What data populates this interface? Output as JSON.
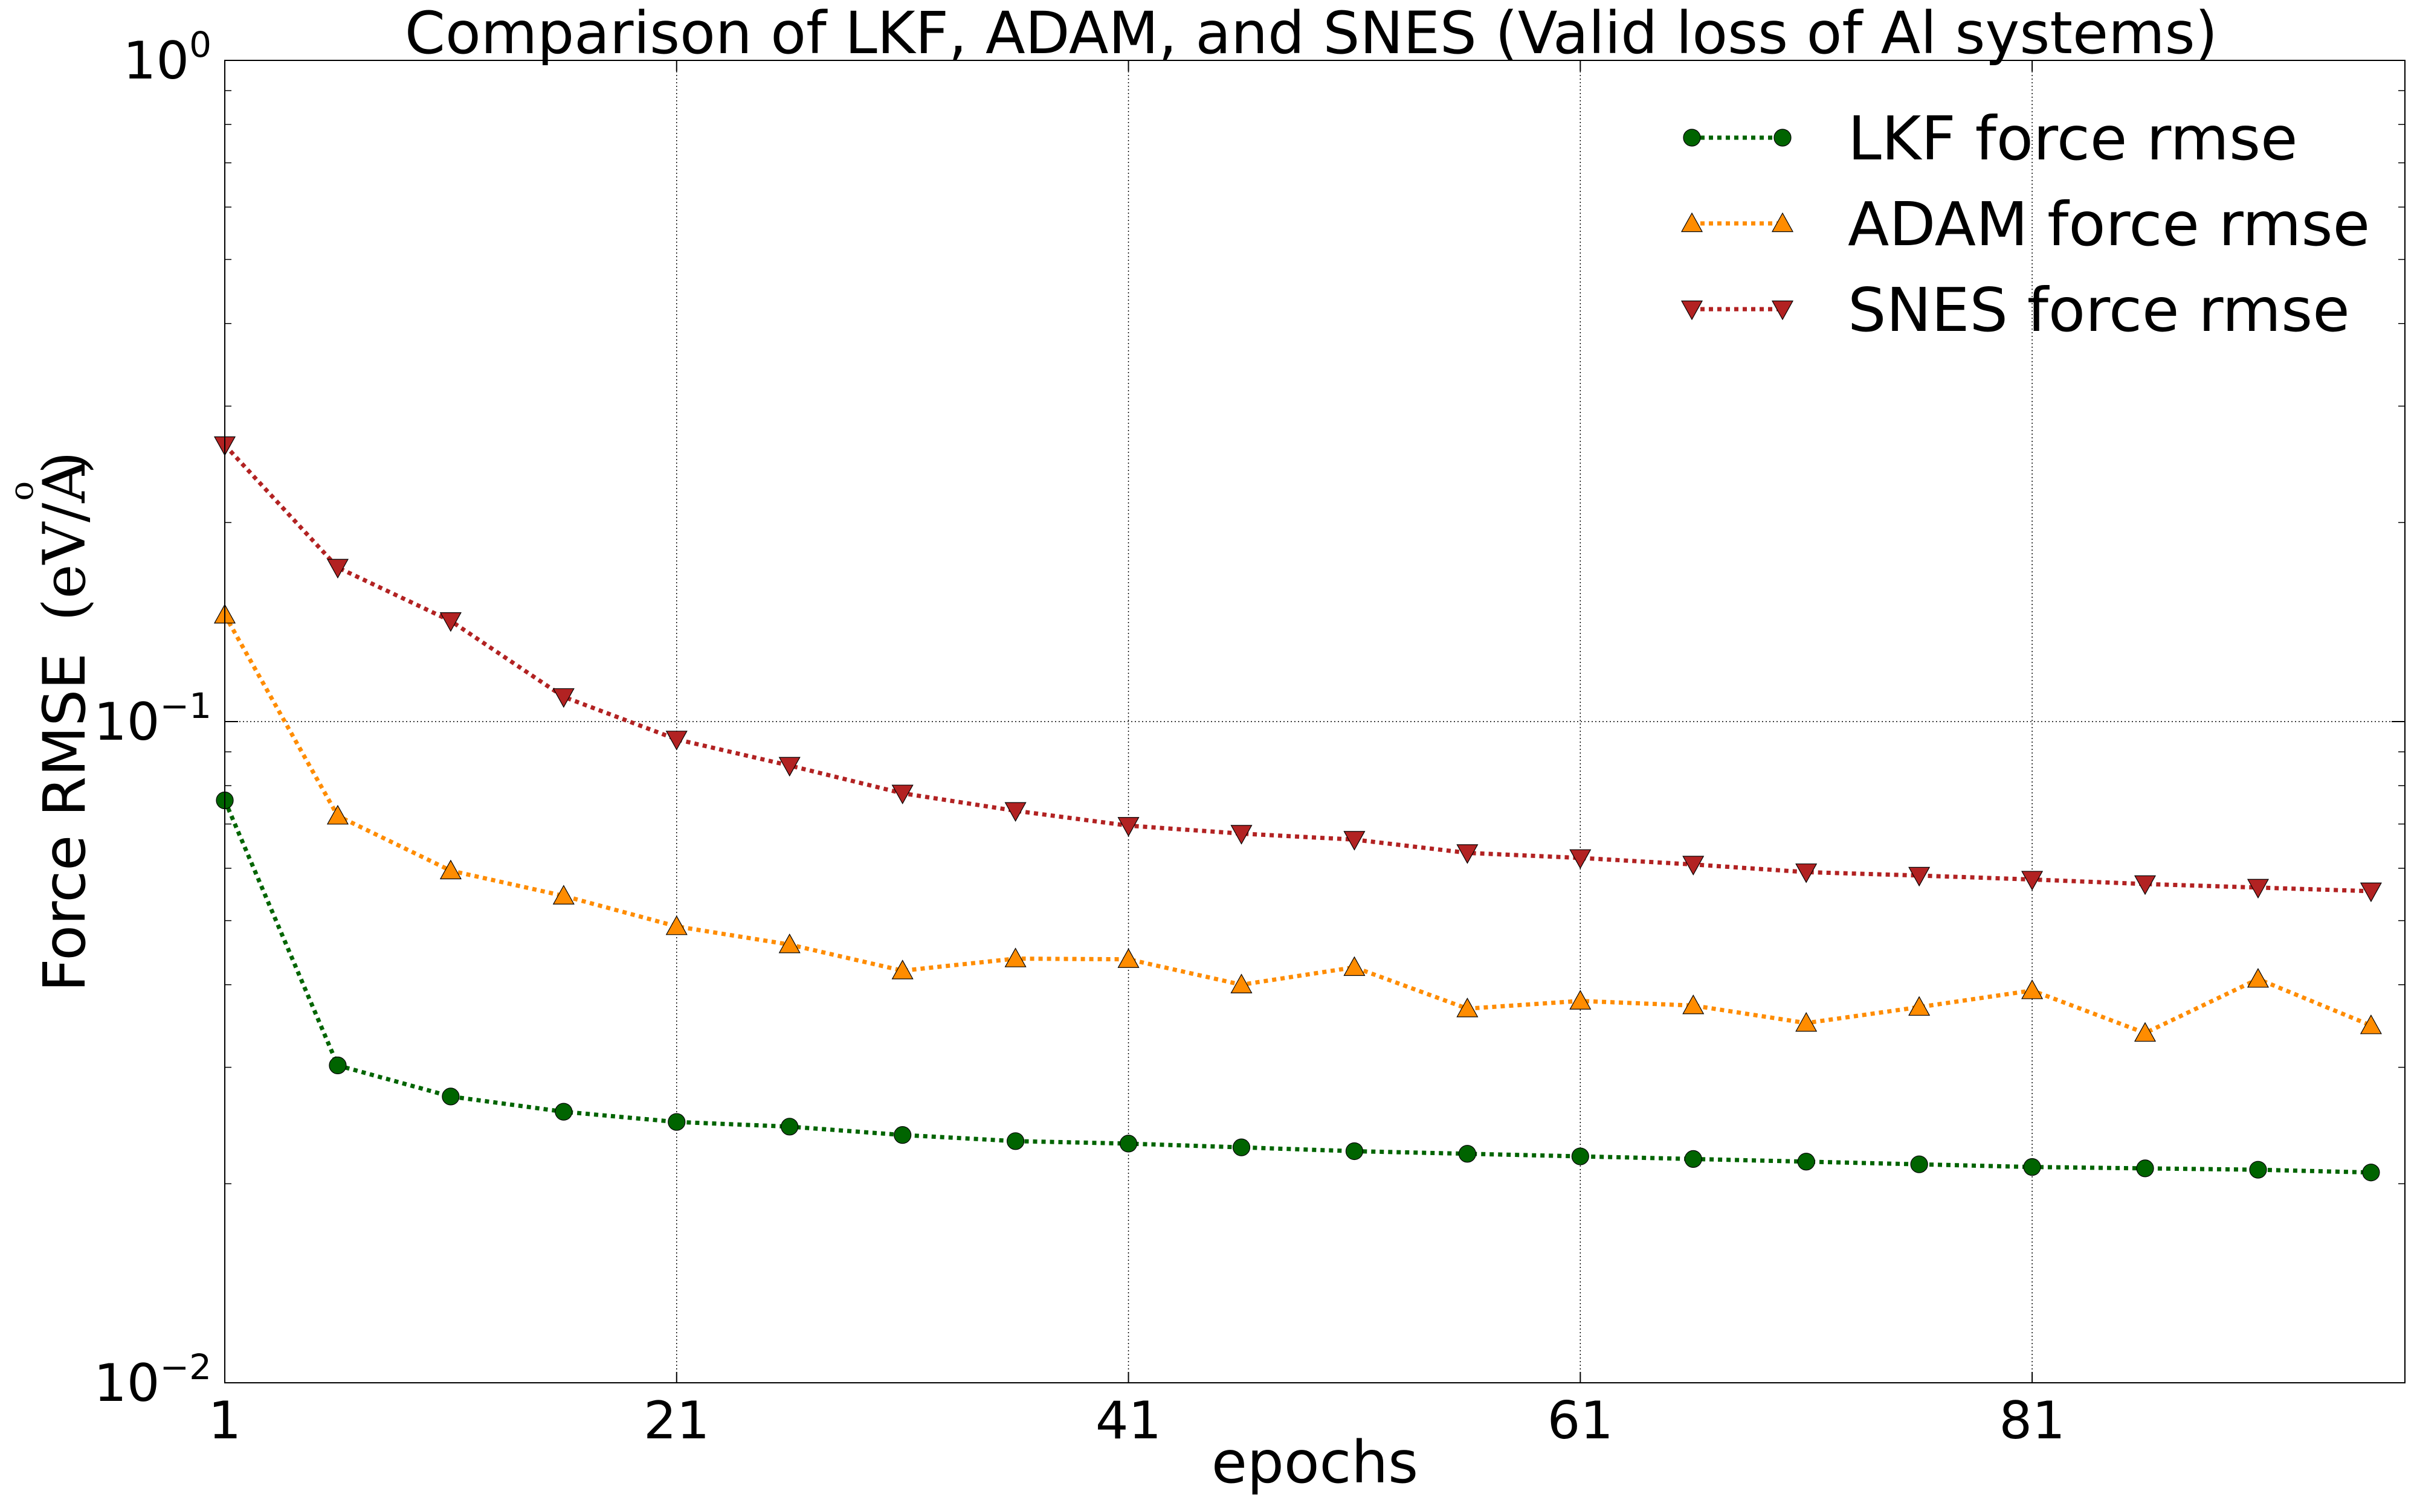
{
  "chart_data": {
    "type": "line",
    "title": "Comparison of LKF, ADAM, and SNES (Valid loss of Al systems)",
    "xlabel": "epochs",
    "ylabel": "Force RMSE (eV/Å)",
    "ylabel_text": "Force RMSE",
    "ylabel_unit_open": "(eV/A",
    "ylabel_ring": "o",
    "ylabel_unit_close": ")",
    "y_scale": "log",
    "xlim": [
      1,
      97.5
    ],
    "ylim": [
      0.01,
      1
    ],
    "x_ticks": [
      1,
      21,
      41,
      61,
      81
    ],
    "x_tick_labels": [
      "1",
      "21",
      "41",
      "61",
      "81"
    ],
    "y_ticks": [
      0.01,
      0.1,
      1
    ],
    "y_tick_labels": [
      {
        "base": "10",
        "exp": "−2"
      },
      {
        "base": "10",
        "exp": "−1"
      },
      {
        "base": "10",
        "exp": "0"
      }
    ],
    "grid": true,
    "legend_position": "top-right",
    "x": [
      1,
      6,
      11,
      16,
      21,
      26,
      31,
      36,
      41,
      46,
      51,
      56,
      61,
      66,
      71,
      76,
      81,
      86,
      91,
      96
    ],
    "series": [
      {
        "name": "LKF force rmse",
        "color": "#006400",
        "marker": "circle",
        "values": [
          0.076,
          0.0302,
          0.0271,
          0.0257,
          0.0248,
          0.0244,
          0.0237,
          0.0232,
          0.023,
          0.0227,
          0.0224,
          0.0222,
          0.022,
          0.0218,
          0.0216,
          0.0214,
          0.0212,
          0.0211,
          0.021,
          0.0208
        ]
      },
      {
        "name": "ADAM force rmse",
        "color": "#ff8c00",
        "marker": "triangle-up",
        "values": [
          0.145,
          0.072,
          0.0595,
          0.0545,
          0.049,
          0.046,
          0.042,
          0.0438,
          0.0437,
          0.04,
          0.0425,
          0.0368,
          0.0378,
          0.0372,
          0.035,
          0.037,
          0.0392,
          0.0338,
          0.0408,
          0.0347
        ]
      },
      {
        "name": "SNES force rmse",
        "color": "#b22222",
        "marker": "triangle-down",
        "values": [
          0.262,
          0.171,
          0.142,
          0.109,
          0.094,
          0.0858,
          0.0779,
          0.0733,
          0.0696,
          0.0677,
          0.0663,
          0.0633,
          0.0622,
          0.0608,
          0.0592,
          0.0585,
          0.0577,
          0.0568,
          0.0561,
          0.0554
        ]
      }
    ]
  }
}
